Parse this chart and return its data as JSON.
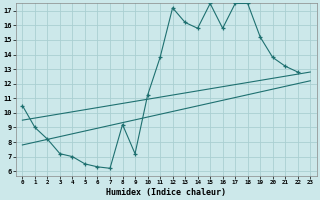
{
  "xlabel": "Humidex (Indice chaleur)",
  "background_color": "#cce8ea",
  "grid_color": "#aacfd2",
  "line_color": "#1e7070",
  "xlim": [
    -0.5,
    23.5
  ],
  "ylim": [
    5.7,
    17.5
  ],
  "yticks": [
    6,
    7,
    8,
    9,
    10,
    11,
    12,
    13,
    14,
    15,
    16,
    17
  ],
  "xticks": [
    0,
    1,
    2,
    3,
    4,
    5,
    6,
    7,
    8,
    9,
    10,
    11,
    12,
    13,
    14,
    15,
    16,
    17,
    18,
    19,
    20,
    21,
    22,
    23
  ],
  "line1_x": [
    0,
    1,
    2,
    3,
    4,
    5,
    6,
    7,
    8,
    9,
    10,
    11,
    12,
    13,
    14,
    15,
    16,
    17,
    18,
    19,
    20,
    21,
    22
  ],
  "line1_y": [
    10.5,
    9.0,
    8.2,
    7.2,
    7.0,
    6.5,
    6.3,
    6.2,
    9.2,
    7.2,
    11.2,
    13.8,
    17.2,
    16.2,
    15.8,
    17.5,
    15.8,
    17.5,
    17.5,
    15.2,
    13.8,
    13.2,
    12.8
  ],
  "line2_x": [
    0,
    23
  ],
  "line2_y": [
    9.5,
    12.8
  ],
  "line3_x": [
    0,
    23
  ],
  "line3_y": [
    7.8,
    12.2
  ]
}
